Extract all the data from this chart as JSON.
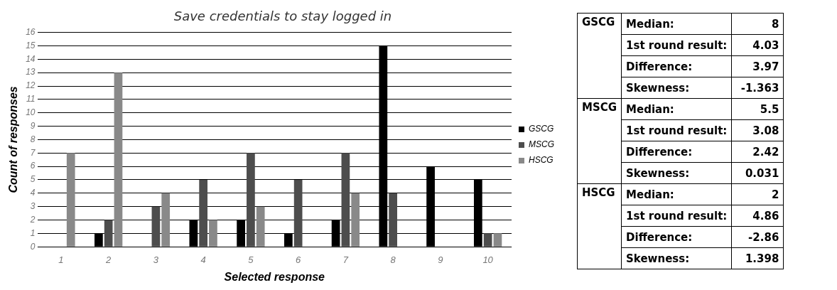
{
  "chart_data": [
    {
      "type": "bar",
      "title": "Save credentials to stay logged in",
      "xlabel": "Selected response",
      "ylabel": "Count of responses",
      "categories": [
        "1",
        "2",
        "3",
        "4",
        "5",
        "6",
        "7",
        "8",
        "9",
        "10"
      ],
      "series": [
        {
          "name": "GSCG",
          "color": "#000000",
          "values": [
            0,
            1,
            0,
            2,
            2,
            1,
            2,
            15,
            6,
            5
          ]
        },
        {
          "name": "MSCG",
          "color": "#4d4d4d",
          "values": [
            0,
            2,
            3,
            5,
            7,
            5,
            7,
            4,
            0,
            1
          ]
        },
        {
          "name": "HSCG",
          "color": "#898989",
          "values": [
            7,
            13,
            4,
            2,
            3,
            0,
            4,
            0,
            0,
            1
          ]
        }
      ],
      "ylim": [
        0,
        16
      ],
      "yticks": [
        0,
        1,
        2,
        3,
        4,
        5,
        6,
        7,
        8,
        9,
        10,
        11,
        12,
        13,
        14,
        15,
        16
      ],
      "grid": "y",
      "legend": "right"
    },
    {
      "type": "other",
      "annotations": [
        "GSCG",
        "Median:",
        "8",
        "1st round result:",
        "4.03",
        "Difference:",
        "3.97",
        "Skewness:",
        "-1.363",
        "MSCG",
        "Median:",
        "5.5",
        "1st round result:",
        "3.08",
        "Difference:",
        "2.42",
        "Skewness:",
        "0.031",
        "HSCG",
        "Median:",
        "2",
        "1st round result:",
        "4.86",
        "Difference:",
        "-2.86",
        "Skewness:",
        "1.398"
      ]
    }
  ]
}
